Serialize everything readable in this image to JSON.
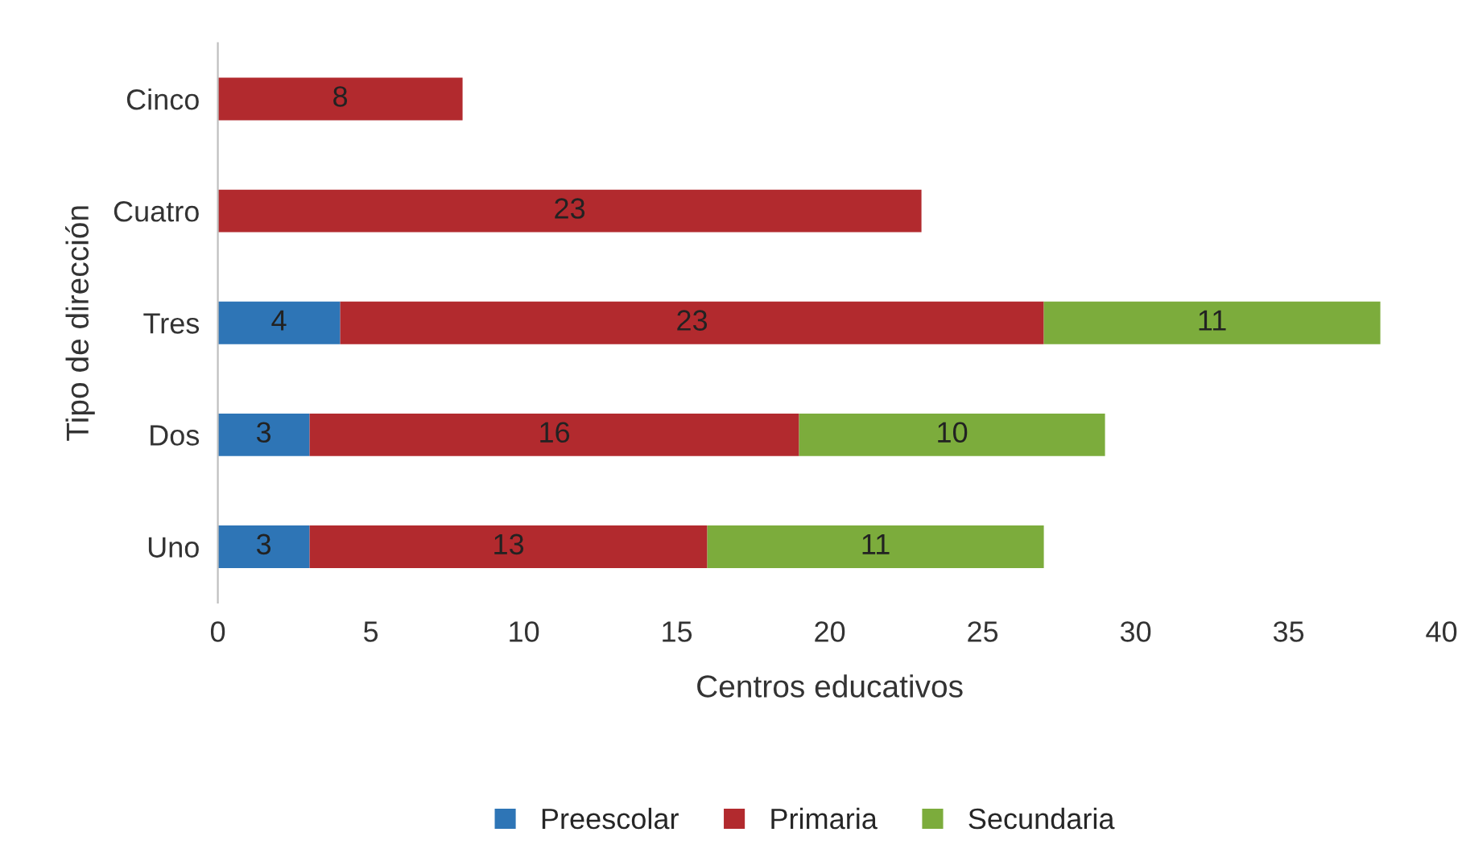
{
  "chart_data": {
    "type": "bar",
    "orientation": "horizontal",
    "stacked": true,
    "xlabel": "Centros educativos",
    "ylabel": "Tipo de dirección",
    "categories": [
      "Cinco",
      "Cuatro",
      "Tres",
      "Dos",
      "Uno"
    ],
    "series": [
      {
        "name": "Preescolar",
        "color": "#2e75b6",
        "values": [
          null,
          null,
          4,
          3,
          3
        ]
      },
      {
        "name": "Primaria",
        "color": "#b22a2e",
        "values": [
          8,
          23,
          23,
          16,
          13
        ]
      },
      {
        "name": "Secundaria",
        "color": "#7cac3c",
        "values": [
          null,
          null,
          11,
          10,
          11
        ]
      }
    ],
    "xlim": [
      0,
      40
    ],
    "xticks": [
      0,
      5,
      10,
      15,
      20,
      25,
      30,
      35,
      40
    ],
    "data_labels": true,
    "grid": false,
    "legend": "bottom"
  }
}
